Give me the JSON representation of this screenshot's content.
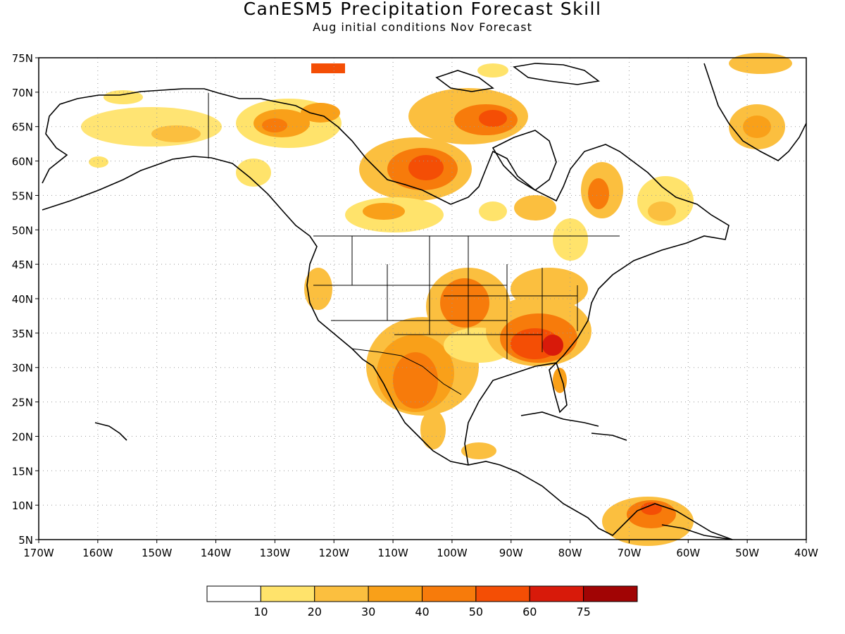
{
  "title": "CanESM5 Precipitation Forecast Skill",
  "subtitle": "Aug initial conditions  Nov Forecast",
  "lat_labels": [
    "75N",
    "70N",
    "65N",
    "60N",
    "55N",
    "50N",
    "45N",
    "40N",
    "35N",
    "30N",
    "25N",
    "20N",
    "15N",
    "10N",
    "5N"
  ],
  "lon_labels": [
    "170W",
    "160W",
    "150W",
    "140W",
    "130W",
    "120W",
    "110W",
    "100W",
    "90W",
    "80W",
    "70W",
    "60W",
    "50W",
    "40W"
  ],
  "colorbar": {
    "labels": [
      "10",
      "20",
      "30",
      "40",
      "50",
      "60",
      "75"
    ],
    "colors": [
      "#ffffff",
      "#ffe36b",
      "#fbbf3f",
      "#f9a019",
      "#f77b0b",
      "#f44e05",
      "#d81a0a",
      "#a10404"
    ]
  }
}
